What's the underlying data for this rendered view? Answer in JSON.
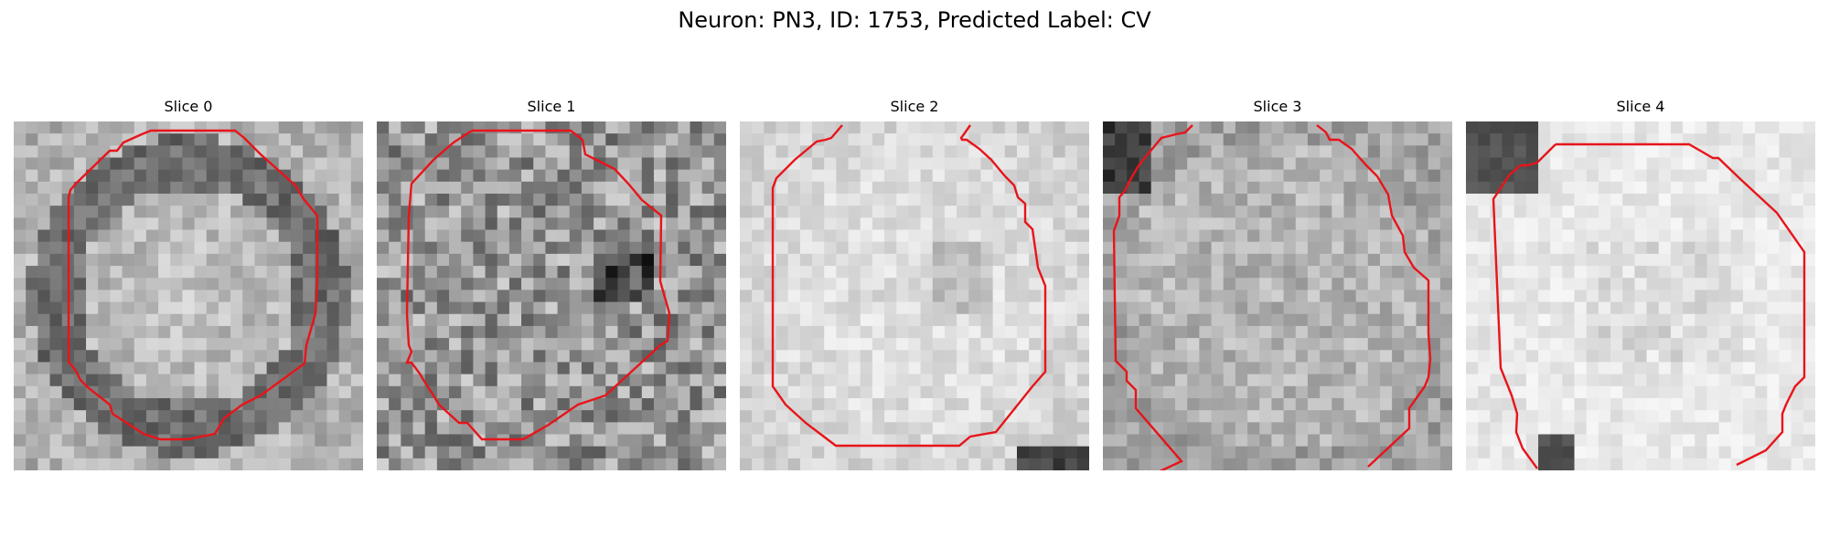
{
  "figure": {
    "title": "Neuron: PN3, ID: 1753, Predicted Label: CV"
  },
  "contour_color": "#e8141a",
  "slices": [
    {
      "title": "Slice 0",
      "brightness": "bright-center-dark-ring"
    },
    {
      "title": "Slice 1",
      "brightness": "mottled-mid-gray"
    },
    {
      "title": "Slice 2",
      "brightness": "very-light-center"
    },
    {
      "title": "Slice 3",
      "brightness": "mid-gray-dark-corner"
    },
    {
      "title": "Slice 4",
      "brightness": "very-light-with-dark-spots"
    }
  ]
}
